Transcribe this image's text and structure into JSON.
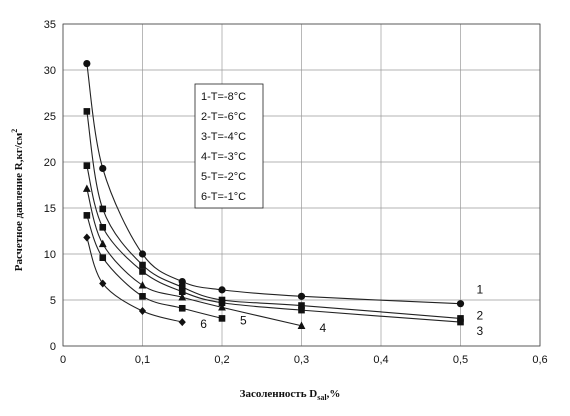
{
  "chart_data": {
    "type": "line",
    "title": "",
    "xlabel": "Засоленность",
    "xlabel_sub": "sal",
    "xlabel_suffix": ",%",
    "ylabel": "Расчетное давление R,кг/см",
    "ylabel_sup": "2",
    "xlim": [
      0,
      0.6
    ],
    "ylim": [
      0,
      35
    ],
    "xticks": [
      0,
      0.1,
      0.2,
      0.3,
      0.4,
      0.5,
      0.6
    ],
    "xtick_labels": [
      "0",
      "0,1",
      "0,2",
      "0,3",
      "0,4",
      "0,5",
      "0,6"
    ],
    "yticks": [
      0,
      5,
      10,
      15,
      20,
      25,
      30,
      35
    ],
    "ytick_labels": [
      "0",
      "5",
      "10",
      "15",
      "20",
      "25",
      "30",
      "35"
    ],
    "grid": true,
    "legend_position": "upper-center",
    "series": [
      {
        "name": "1-T=-8°C",
        "label": "1",
        "marker": "circle",
        "x": [
          0.03,
          0.05,
          0.1,
          0.15,
          0.2,
          0.3,
          0.5
        ],
        "y": [
          30.7,
          19.3,
          10.0,
          7.0,
          6.1,
          5.4,
          4.6
        ]
      },
      {
        "name": "2-T=-6°C",
        "label": "2",
        "marker": "square",
        "x": [
          0.03,
          0.05,
          0.1,
          0.15,
          0.2,
          0.3,
          0.5
        ],
        "y": [
          25.5,
          14.9,
          8.8,
          6.4,
          5.0,
          4.4,
          3.0
        ]
      },
      {
        "name": "3-T=-4°C",
        "label": "3",
        "marker": "square",
        "x": [
          0.03,
          0.05,
          0.1,
          0.15,
          0.2,
          0.3,
          0.5
        ],
        "y": [
          19.6,
          12.9,
          8.1,
          5.9,
          4.7,
          3.9,
          2.6
        ]
      },
      {
        "name": "4-T=-3°C",
        "label": "4",
        "marker": "triangle",
        "x": [
          0.03,
          0.05,
          0.1,
          0.15,
          0.2,
          0.3
        ],
        "y": [
          17.1,
          11.1,
          6.6,
          5.3,
          4.2,
          2.2
        ]
      },
      {
        "name": "5-T=-2°C",
        "label": "5",
        "marker": "square",
        "x": [
          0.03,
          0.05,
          0.1,
          0.15,
          0.2
        ],
        "y": [
          14.2,
          9.6,
          5.4,
          4.1,
          3.0
        ]
      },
      {
        "name": "6-T=-1°C",
        "label": "6",
        "marker": "diamond",
        "x": [
          0.03,
          0.05,
          0.1,
          0.15
        ],
        "y": [
          11.8,
          6.8,
          3.8,
          2.6
        ]
      }
    ]
  }
}
